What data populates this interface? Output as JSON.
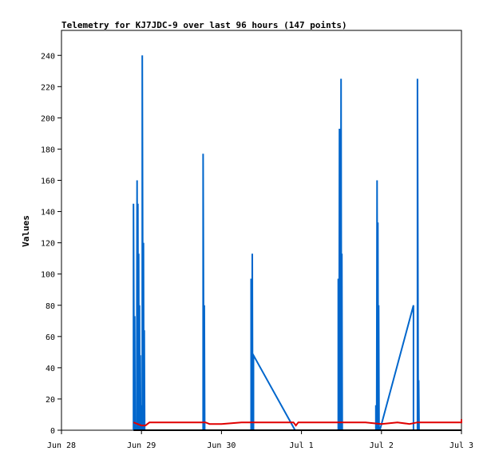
{
  "chart_data": {
    "type": "line",
    "title": "Telemetry for KJ7JDC-9 over last 96 hours (147 points)",
    "xlabel": "",
    "ylabel": "Values",
    "xlim": [
      "Jun 28",
      "Jul 3"
    ],
    "ylim": [
      0,
      256
    ],
    "x_ticks": [
      "Jun 28",
      "Jun 29",
      "Jun 30",
      "Jul 1",
      "Jul 2",
      "Jul 3"
    ],
    "y_ticks": [
      0,
      20,
      40,
      60,
      80,
      100,
      120,
      140,
      160,
      180,
      200,
      220,
      240
    ],
    "grid": false,
    "legend": "none",
    "colors": {
      "blue": "#0066cc",
      "red": "#e00000",
      "black": "#000000",
      "frame": "#000000"
    },
    "series": [
      {
        "color": "#0066cc",
        "points": [
          [
            0.9,
            0
          ],
          [
            0.9,
            145
          ],
          [
            0.91,
            0
          ],
          [
            0.915,
            73
          ],
          [
            0.92,
            0
          ],
          [
            0.94,
            0
          ],
          [
            0.945,
            160
          ],
          [
            0.95,
            0
          ],
          [
            0.955,
            145
          ],
          [
            0.96,
            0
          ],
          [
            0.965,
            113
          ],
          [
            0.97,
            0
          ],
          [
            0.975,
            80
          ],
          [
            0.98,
            0
          ],
          [
            0.985,
            48
          ],
          [
            0.99,
            0
          ],
          [
            0.995,
            16
          ],
          [
            1.0,
            0
          ],
          [
            1.01,
            0
          ],
          [
            1.01,
            240
          ],
          [
            1.02,
            0
          ],
          [
            1.025,
            120
          ],
          [
            1.03,
            0
          ],
          [
            1.035,
            64
          ],
          [
            1.04,
            0
          ],
          [
            1.77,
            0
          ],
          [
            1.77,
            177
          ],
          [
            1.78,
            0
          ],
          [
            1.785,
            80
          ],
          [
            1.79,
            0
          ],
          [
            2.37,
            0
          ],
          [
            2.37,
            97
          ],
          [
            2.38,
            0
          ],
          [
            2.385,
            113
          ],
          [
            2.39,
            0
          ],
          [
            2.4,
            0
          ],
          [
            2.4,
            48
          ],
          [
            2.92,
            0
          ],
          [
            3.46,
            0
          ],
          [
            3.46,
            97
          ],
          [
            3.47,
            0
          ],
          [
            3.475,
            193
          ],
          [
            3.48,
            0
          ],
          [
            3.485,
            128
          ],
          [
            3.49,
            0
          ],
          [
            3.495,
            225
          ],
          [
            3.5,
            0
          ],
          [
            3.505,
            113
          ],
          [
            3.51,
            0
          ],
          [
            3.93,
            0
          ],
          [
            3.93,
            16
          ],
          [
            3.94,
            0
          ],
          [
            3.945,
            160
          ],
          [
            3.95,
            0
          ],
          [
            3.955,
            133
          ],
          [
            3.96,
            0
          ],
          [
            3.965,
            80
          ],
          [
            3.97,
            0
          ],
          [
            3.98,
            0
          ],
          [
            4.4,
            80
          ],
          [
            4.4,
            0
          ],
          [
            4.45,
            0
          ],
          [
            4.45,
            225
          ],
          [
            4.46,
            0
          ],
          [
            4.465,
            32
          ],
          [
            4.47,
            0
          ]
        ]
      },
      {
        "color": "#e00000",
        "points": [
          [
            0.9,
            5
          ],
          [
            0.95,
            4
          ],
          [
            1.0,
            3
          ],
          [
            1.05,
            3
          ],
          [
            1.1,
            5
          ],
          [
            1.5,
            5
          ],
          [
            1.75,
            5
          ],
          [
            1.8,
            5
          ],
          [
            1.85,
            4
          ],
          [
            2.0,
            4
          ],
          [
            2.25,
            5
          ],
          [
            2.4,
            5
          ],
          [
            2.7,
            5
          ],
          [
            2.9,
            5
          ],
          [
            2.93,
            3
          ],
          [
            2.96,
            5
          ],
          [
            3.0,
            5
          ],
          [
            3.2,
            5
          ],
          [
            3.45,
            5
          ],
          [
            3.5,
            5
          ],
          [
            3.8,
            5
          ],
          [
            4.0,
            4
          ],
          [
            4.2,
            5
          ],
          [
            4.35,
            4
          ],
          [
            4.45,
            5
          ],
          [
            4.7,
            5
          ],
          [
            4.9,
            5
          ],
          [
            5.0,
            5
          ],
          [
            5.0,
            7
          ]
        ]
      },
      {
        "color": "#000000",
        "points": [
          [
            0.9,
            0
          ],
          [
            5.0,
            0
          ]
        ]
      }
    ]
  }
}
